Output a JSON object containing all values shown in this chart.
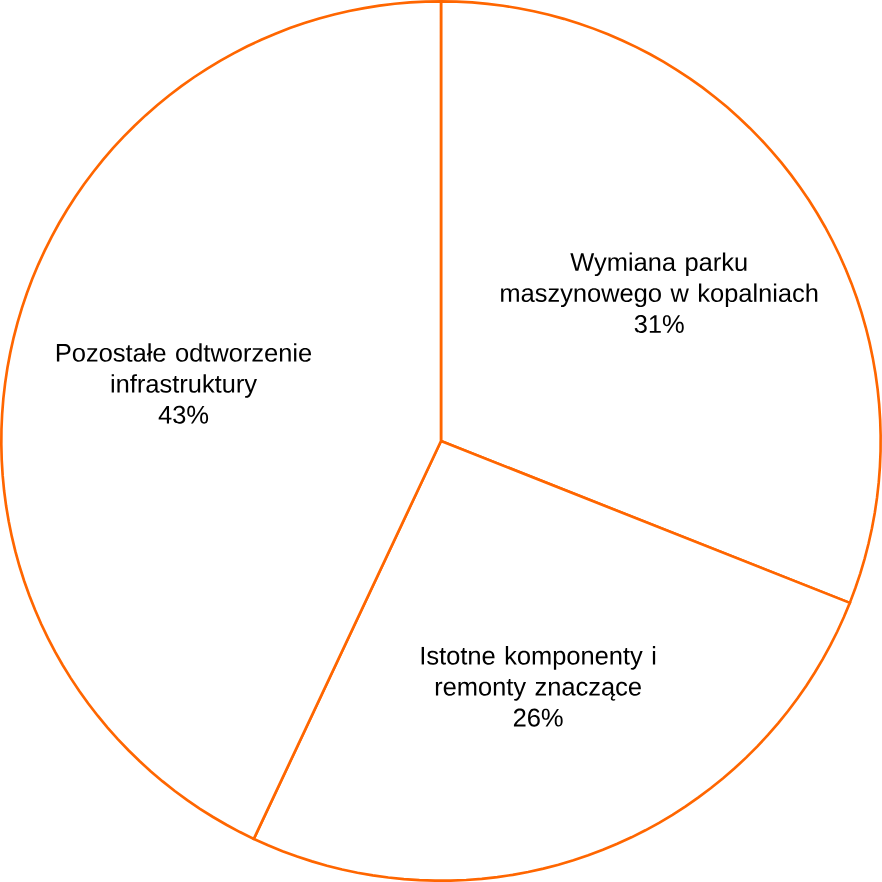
{
  "chart_data": {
    "type": "pie",
    "categories": [
      "Wymiana parku maszynowego w kopalniach",
      "Istotne komponenty i remonty znaczące",
      "Pozostałe odtworzenie infrastruktury"
    ],
    "values": [
      31,
      26,
      43
    ],
    "value_labels": [
      "31%",
      "26%",
      "43%"
    ],
    "colors": [
      "#ffffff",
      "#ffffff",
      "#ffffff"
    ]
  }
}
